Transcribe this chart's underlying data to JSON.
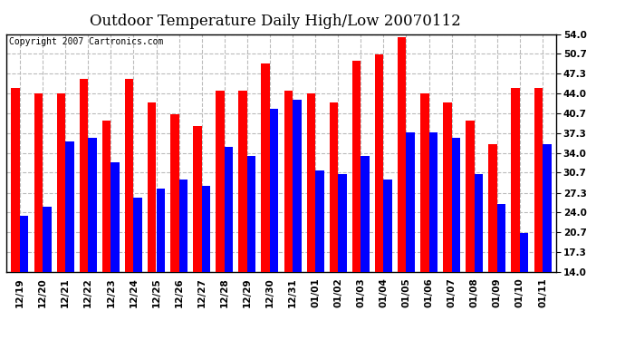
{
  "title": "Outdoor Temperature Daily High/Low 20070112",
  "copyright": "Copyright 2007 Cartronics.com",
  "categories": [
    "12/19",
    "12/20",
    "12/21",
    "12/22",
    "12/23",
    "12/24",
    "12/25",
    "12/26",
    "12/27",
    "12/28",
    "12/29",
    "12/30",
    "12/31",
    "01/01",
    "01/02",
    "01/03",
    "01/04",
    "01/05",
    "01/06",
    "01/07",
    "01/08",
    "01/09",
    "01/10",
    "01/11"
  ],
  "highs": [
    45.0,
    44.0,
    44.0,
    46.5,
    39.5,
    46.5,
    42.5,
    40.5,
    38.5,
    44.5,
    44.5,
    49.0,
    44.5,
    44.0,
    42.5,
    49.5,
    50.5,
    53.5,
    44.0,
    42.5,
    39.5,
    35.5,
    45.0,
    45.0
  ],
  "lows": [
    23.5,
    25.0,
    36.0,
    36.5,
    32.5,
    26.5,
    28.0,
    29.5,
    28.5,
    35.0,
    33.5,
    41.5,
    43.0,
    31.0,
    30.5,
    33.5,
    29.5,
    37.5,
    37.5,
    36.5,
    30.5,
    25.5,
    20.5,
    35.5
  ],
  "high_color": "#ff0000",
  "low_color": "#0000ff",
  "background_color": "#ffffff",
  "grid_color": "#bbbbbb",
  "ylim_min": 14.0,
  "ylim_max": 54.0,
  "yticks": [
    14.0,
    17.3,
    20.7,
    24.0,
    27.3,
    30.7,
    34.0,
    37.3,
    40.7,
    44.0,
    47.3,
    50.7,
    54.0
  ],
  "title_fontsize": 12,
  "copyright_fontsize": 7,
  "tick_fontsize": 7.5,
  "bar_width": 0.38
}
